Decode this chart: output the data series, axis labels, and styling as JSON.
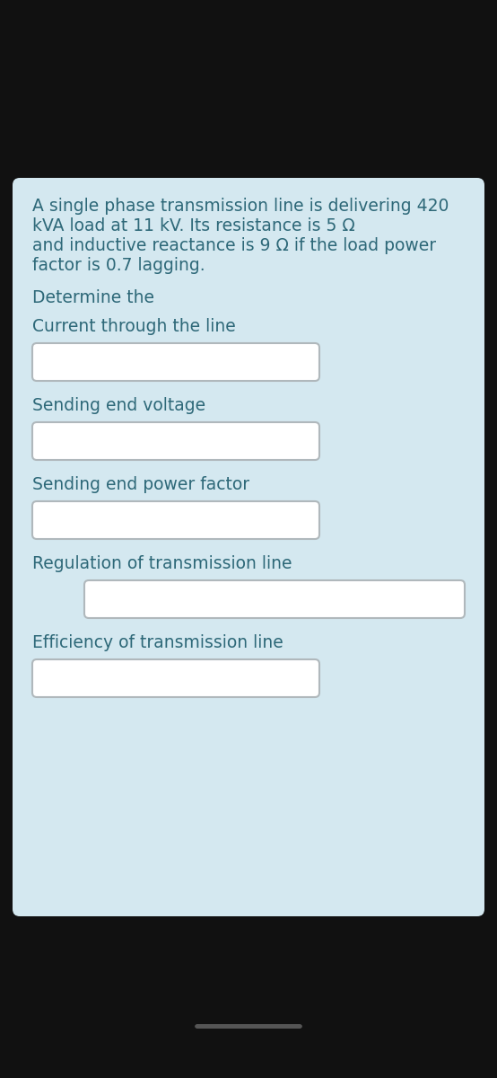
{
  "background_outer": "#111111",
  "background_card": "#d4e8f0",
  "text_color": "#2d6878",
  "problem_text_lines": [
    "A single phase transmission line is delivering 420",
    "kVA load at 11 kV. Its resistance is 5 Ω",
    "and inductive reactance is 9 Ω if the load power",
    "factor is 0.7 lagging."
  ],
  "determine_text": "Determine the",
  "labels": [
    "Current through the line",
    "Sending end voltage",
    "Sending end power factor",
    "Regulation of transmission line",
    "Efficiency of transmission line"
  ],
  "box_indent": [
    false,
    false,
    false,
    true,
    false
  ],
  "box_color": "#ffffff",
  "box_edge_color": "#b0b8bc",
  "font_size": 13.5,
  "bottom_bar_color": "#555555"
}
